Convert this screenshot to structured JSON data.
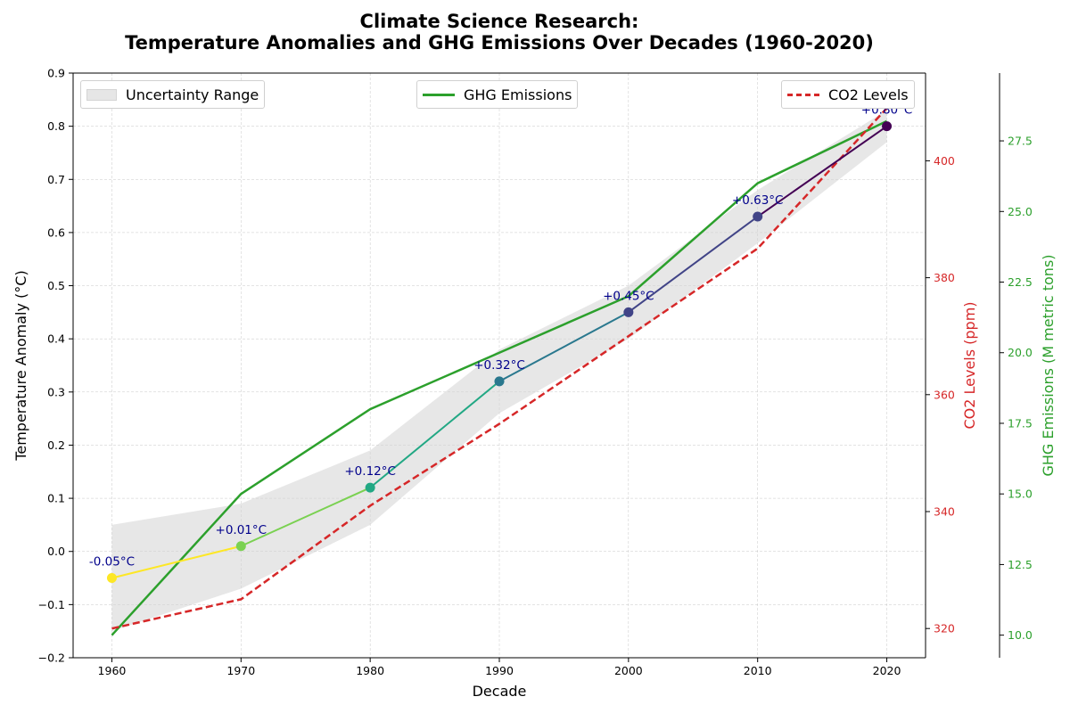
{
  "chart_data": {
    "type": "line",
    "title": "Climate Science Research:",
    "subtitle": "Temperature Anomalies and GHG Emissions Over Decades (1960-2020)",
    "xlabel": "Decade",
    "ylabel": "Temperature Anomaly (°C)",
    "y2label": "CO2 Levels (ppm)",
    "y3label": "GHG Emissions (M metric tons)",
    "x": [
      1960,
      1970,
      1980,
      1990,
      2000,
      2010,
      2020
    ],
    "xlim": [
      1957,
      2023
    ],
    "ylim": [
      -0.2,
      0.9
    ],
    "y2lim": [
      315,
      415
    ],
    "y3lim": [
      9.2,
      29.9
    ],
    "xticks": [
      "1960",
      "1970",
      "1980",
      "1990",
      "2000",
      "2010",
      "2020"
    ],
    "yticks": [
      "−0.2",
      "−0.1",
      "0.0",
      "0.1",
      "0.2",
      "0.3",
      "0.4",
      "0.5",
      "0.6",
      "0.7",
      "0.8",
      "0.9"
    ],
    "y2ticks": [
      "320",
      "340",
      "360",
      "380",
      "400"
    ],
    "y3ticks": [
      "10.0",
      "12.5",
      "15.0",
      "17.5",
      "20.0",
      "22.5",
      "25.0",
      "27.5"
    ],
    "grid": true,
    "series": [
      {
        "name": "Temperature Anomaly",
        "axis": "left",
        "values": [
          -0.05,
          0.01,
          0.12,
          0.32,
          0.45,
          0.63,
          0.8
        ],
        "point_colors": [
          "#fde725",
          "#7ad151",
          "#22a884",
          "#2a788e",
          "#414487",
          "#414487",
          "#440154"
        ],
        "segment_colors": [
          "#fde725",
          "#7ad151",
          "#22a884",
          "#2a788e",
          "#414487",
          "#440154"
        ],
        "labels": [
          "-0.05°C",
          "+0.01°C",
          "+0.12°C",
          "+0.32°C",
          "+0.45°C",
          "+0.63°C",
          "+0.80°C"
        ]
      },
      {
        "name": "Uncertainty Range",
        "axis": "left",
        "type": "band",
        "lower": [
          -0.15,
          -0.07,
          0.05,
          0.26,
          0.4,
          0.58,
          0.77
        ],
        "upper": [
          0.05,
          0.09,
          0.19,
          0.38,
          0.5,
          0.68,
          0.83
        ],
        "color": "#d3d3d3"
      },
      {
        "name": "CO2 Levels",
        "axis": "right1",
        "values": [
          320,
          325,
          341,
          355,
          370,
          385,
          409
        ],
        "color": "#d62728",
        "dash": true
      },
      {
        "name": "GHG Emissions",
        "axis": "right2",
        "values": [
          10.0,
          15.0,
          18.0,
          20.0,
          22.0,
          26.0,
          28.2
        ],
        "color": "#2ca02c"
      }
    ],
    "legends": [
      {
        "label": "Uncertainty Range",
        "placement": "top-left"
      },
      {
        "label": "GHG Emissions",
        "placement": "top-center"
      },
      {
        "label": "CO2 Levels",
        "placement": "top-right"
      }
    ]
  }
}
